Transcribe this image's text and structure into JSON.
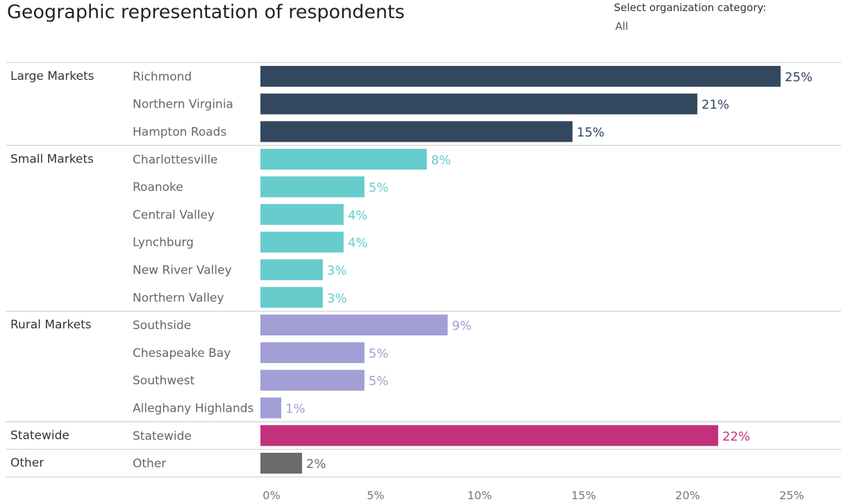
{
  "title": "Geographic representation of respondents",
  "filter": {
    "label": "Select organization category:",
    "value": "All"
  },
  "colors": {
    "Large Markets": "#33475f",
    "Small Markets": "#66cccc",
    "Rural Markets": "#a29ed6",
    "Statewide": "#c2317a",
    "Other": "#6b6b6b",
    "rule": "#c8c8c8"
  },
  "chart_data": {
    "type": "bar",
    "orientation": "horizontal",
    "title": "Geographic representation of respondents",
    "xlim": [
      0,
      25
    ],
    "x_ticks": [
      "0%",
      "5%",
      "10%",
      "15%",
      "20%",
      "25%"
    ],
    "value_suffix": "%",
    "groups": [
      {
        "name": "Large Markets",
        "categories": [
          "Richmond",
          "Northern Virginia",
          "Hampton Roads"
        ],
        "values": [
          25,
          21,
          15
        ]
      },
      {
        "name": "Small Markets",
        "categories": [
          "Charlottesville",
          "Roanoke",
          "Central Valley",
          "Lynchburg",
          "New River Valley",
          "Northern Valley"
        ],
        "values": [
          8,
          5,
          4,
          4,
          3,
          3
        ]
      },
      {
        "name": "Rural Markets",
        "categories": [
          "Southside",
          "Chesapeake Bay",
          "Southwest",
          "Alleghany Highlands"
        ],
        "values": [
          9,
          5,
          5,
          1
        ]
      },
      {
        "name": "Statewide",
        "categories": [
          "Statewide"
        ],
        "values": [
          22
        ]
      },
      {
        "name": "Other",
        "categories": [
          "Other"
        ],
        "values": [
          2
        ]
      }
    ]
  }
}
